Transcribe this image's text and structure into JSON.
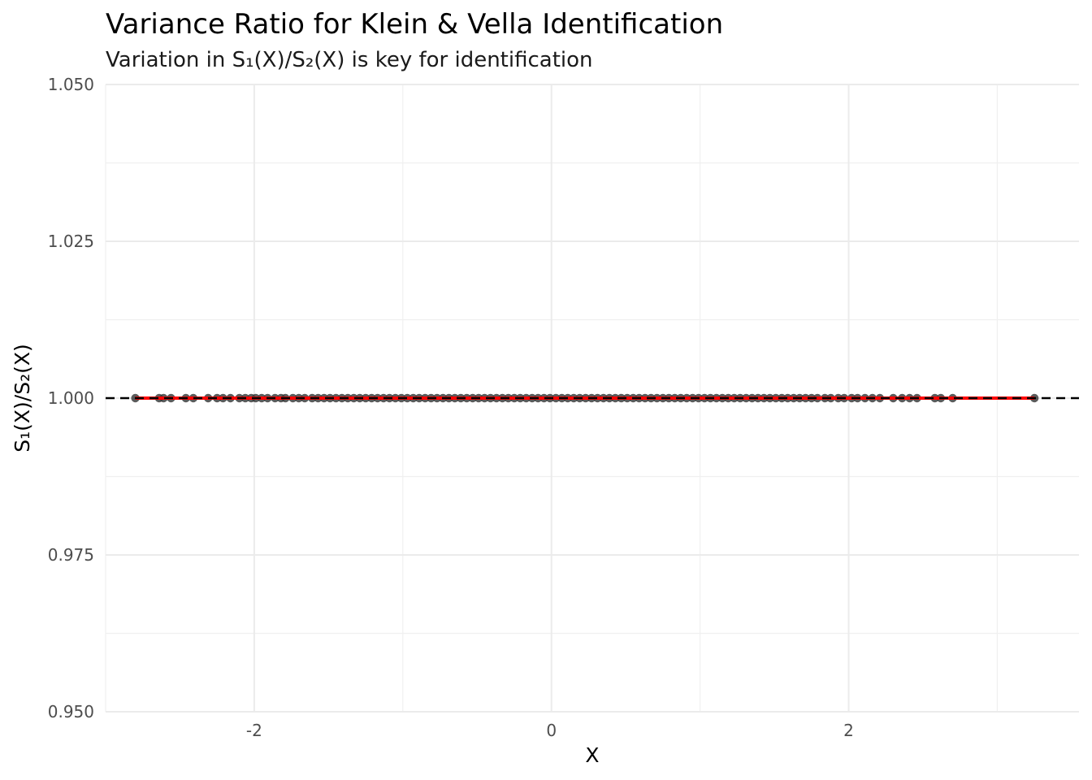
{
  "chart_data": {
    "type": "scatter",
    "title": "Variance Ratio for Klein & Vella Identification",
    "subtitle": "Variation in S₁(X)/S₂(X) is key for identification",
    "xlabel": "X",
    "ylabel": "S₁(X)/S₂(X)",
    "xlim": [
      -3.0,
      3.55
    ],
    "ylim": [
      0.95,
      1.05
    ],
    "x_ticks": [
      -2,
      0,
      2
    ],
    "x_tick_labels": [
      "-2",
      "0",
      "2"
    ],
    "y_ticks": [
      0.95,
      0.975,
      1.0,
      1.025,
      1.05
    ],
    "y_tick_labels": [
      "0.950",
      "0.975",
      "1.000",
      "1.025",
      "1.050"
    ],
    "grid": true,
    "reference_line": {
      "y": 1.0,
      "style": "dashed",
      "color": "#000000"
    },
    "smooth_line": {
      "color": "#ff0000",
      "x_range": [
        -2.8,
        3.25
      ],
      "y": 1.0
    },
    "points": {
      "color": "#333333",
      "x": [
        -2.8,
        -2.64,
        -2.61,
        -2.56,
        -2.46,
        -2.41,
        -2.31,
        -2.25,
        -2.21,
        -2.16,
        -2.1,
        -2.06,
        -2.02,
        -1.99,
        -1.95,
        -1.91,
        -1.86,
        -1.82,
        -1.79,
        -1.74,
        -1.7,
        -1.66,
        -1.61,
        -1.57,
        -1.53,
        -1.49,
        -1.45,
        -1.41,
        -1.37,
        -1.33,
        -1.29,
        -1.25,
        -1.21,
        -1.17,
        -1.13,
        -1.09,
        -1.05,
        -1.01,
        -0.97,
        -0.93,
        -0.89,
        -0.85,
        -0.81,
        -0.77,
        -0.73,
        -0.69,
        -0.65,
        -0.61,
        -0.57,
        -0.53,
        -0.49,
        -0.45,
        -0.41,
        -0.37,
        -0.33,
        -0.29,
        -0.25,
        -0.21,
        -0.17,
        -0.13,
        -0.09,
        -0.05,
        -0.01,
        0.03,
        0.07,
        0.11,
        0.15,
        0.19,
        0.23,
        0.27,
        0.31,
        0.35,
        0.39,
        0.43,
        0.47,
        0.51,
        0.55,
        0.59,
        0.63,
        0.67,
        0.71,
        0.75,
        0.79,
        0.83,
        0.87,
        0.91,
        0.95,
        0.99,
        1.03,
        1.07,
        1.11,
        1.15,
        1.19,
        1.23,
        1.27,
        1.31,
        1.35,
        1.39,
        1.43,
        1.47,
        1.51,
        1.55,
        1.59,
        1.63,
        1.67,
        1.71,
        1.75,
        1.79,
        1.84,
        1.88,
        1.93,
        1.97,
        2.02,
        2.06,
        2.11,
        2.16,
        2.21,
        2.3,
        2.36,
        2.41,
        2.46,
        2.58,
        2.62,
        2.7,
        3.25
      ],
      "y": [
        1.0,
        1.0,
        1.0,
        1.0,
        1.0,
        1.0,
        1.0,
        1.0,
        1.0,
        1.0,
        1.0,
        1.0,
        1.0,
        1.0,
        1.0,
        1.0,
        1.0,
        1.0,
        1.0,
        1.0,
        1.0,
        1.0,
        1.0,
        1.0,
        1.0,
        1.0,
        1.0,
        1.0,
        1.0,
        1.0,
        1.0,
        1.0,
        1.0,
        1.0,
        1.0,
        1.0,
        1.0,
        1.0,
        1.0,
        1.0,
        1.0,
        1.0,
        1.0,
        1.0,
        1.0,
        1.0,
        1.0,
        1.0,
        1.0,
        1.0,
        1.0,
        1.0,
        1.0,
        1.0,
        1.0,
        1.0,
        1.0,
        1.0,
        1.0,
        1.0,
        1.0,
        1.0,
        1.0,
        1.0,
        1.0,
        1.0,
        1.0,
        1.0,
        1.0,
        1.0,
        1.0,
        1.0,
        1.0,
        1.0,
        1.0,
        1.0,
        1.0,
        1.0,
        1.0,
        1.0,
        1.0,
        1.0,
        1.0,
        1.0,
        1.0,
        1.0,
        1.0,
        1.0,
        1.0,
        1.0,
        1.0,
        1.0,
        1.0,
        1.0,
        1.0,
        1.0,
        1.0,
        1.0,
        1.0,
        1.0,
        1.0,
        1.0,
        1.0,
        1.0,
        1.0,
        1.0,
        1.0,
        1.0,
        1.0,
        1.0,
        1.0,
        1.0,
        1.0,
        1.0,
        1.0,
        1.0,
        1.0,
        1.0,
        1.0,
        1.0,
        1.0,
        1.0,
        1.0,
        1.0,
        1.0
      ]
    }
  }
}
